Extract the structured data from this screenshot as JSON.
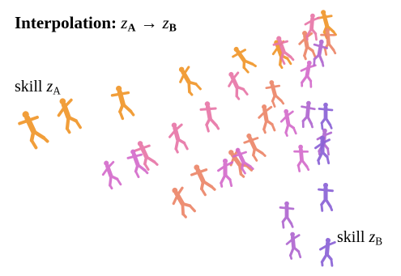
{
  "title": {
    "prefix": "Interpolation: ",
    "var1": "z",
    "sub1": "A",
    "arrow": "→",
    "var2": "z",
    "sub2": "B"
  },
  "label_a": {
    "text": "skill ",
    "var": "z",
    "sub": "A"
  },
  "label_b": {
    "text": "skill ",
    "var": "z",
    "sub": "B"
  },
  "colors": {
    "skill_a": "#f0962a",
    "mid": "#e66fc8",
    "skill_b": "#8a62d6"
  },
  "figures": {
    "icon": "humanoid-agent-pose",
    "trajectories": [
      {
        "t": 0.0
      },
      {
        "t": 0.2
      },
      {
        "t": 0.4
      },
      {
        "t": 0.6
      },
      {
        "t": 0.8
      },
      {
        "t": 1.0
      }
    ]
  }
}
